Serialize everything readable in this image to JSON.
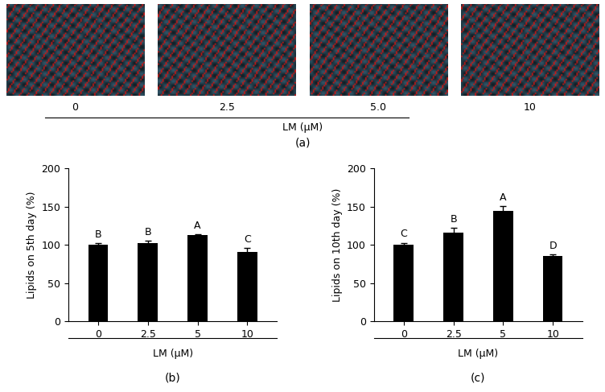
{
  "chart_data": [
    {
      "type": "bar",
      "categories": [
        "0",
        "2.5",
        "5",
        "10"
      ],
      "values": [
        100,
        103,
        113,
        91
      ],
      "errors": [
        2,
        3,
        1,
        5
      ],
      "annotations": [
        "B",
        "B",
        "A",
        "C"
      ],
      "color": "#000000",
      "ylabel": "Lipids on 5th day (%)",
      "xlabel": "LM (μM)",
      "caption": "(b)",
      "ylim": [
        0,
        200
      ],
      "yticks": [
        0,
        50,
        100,
        150,
        200
      ],
      "grid": false
    },
    {
      "type": "bar",
      "categories": [
        "0",
        "2.5",
        "5",
        "10"
      ],
      "values": [
        100,
        116,
        145,
        86
      ],
      "errors": [
        3,
        6,
        6,
        2
      ],
      "annotations": [
        "C",
        "B",
        "A",
        "D"
      ],
      "color": "#000000",
      "ylabel": "Lipids on 10th day (%)",
      "xlabel": "LM (μM)",
      "caption": "(c)",
      "ylim": [
        0,
        200
      ],
      "yticks": [
        0,
        50,
        100,
        150,
        200
      ],
      "grid": false
    }
  ],
  "panel_a": {
    "labels": [
      "0",
      "2.5",
      "5.0",
      "10"
    ],
    "xlabel": "LM (μM)",
    "caption": "(a)"
  }
}
